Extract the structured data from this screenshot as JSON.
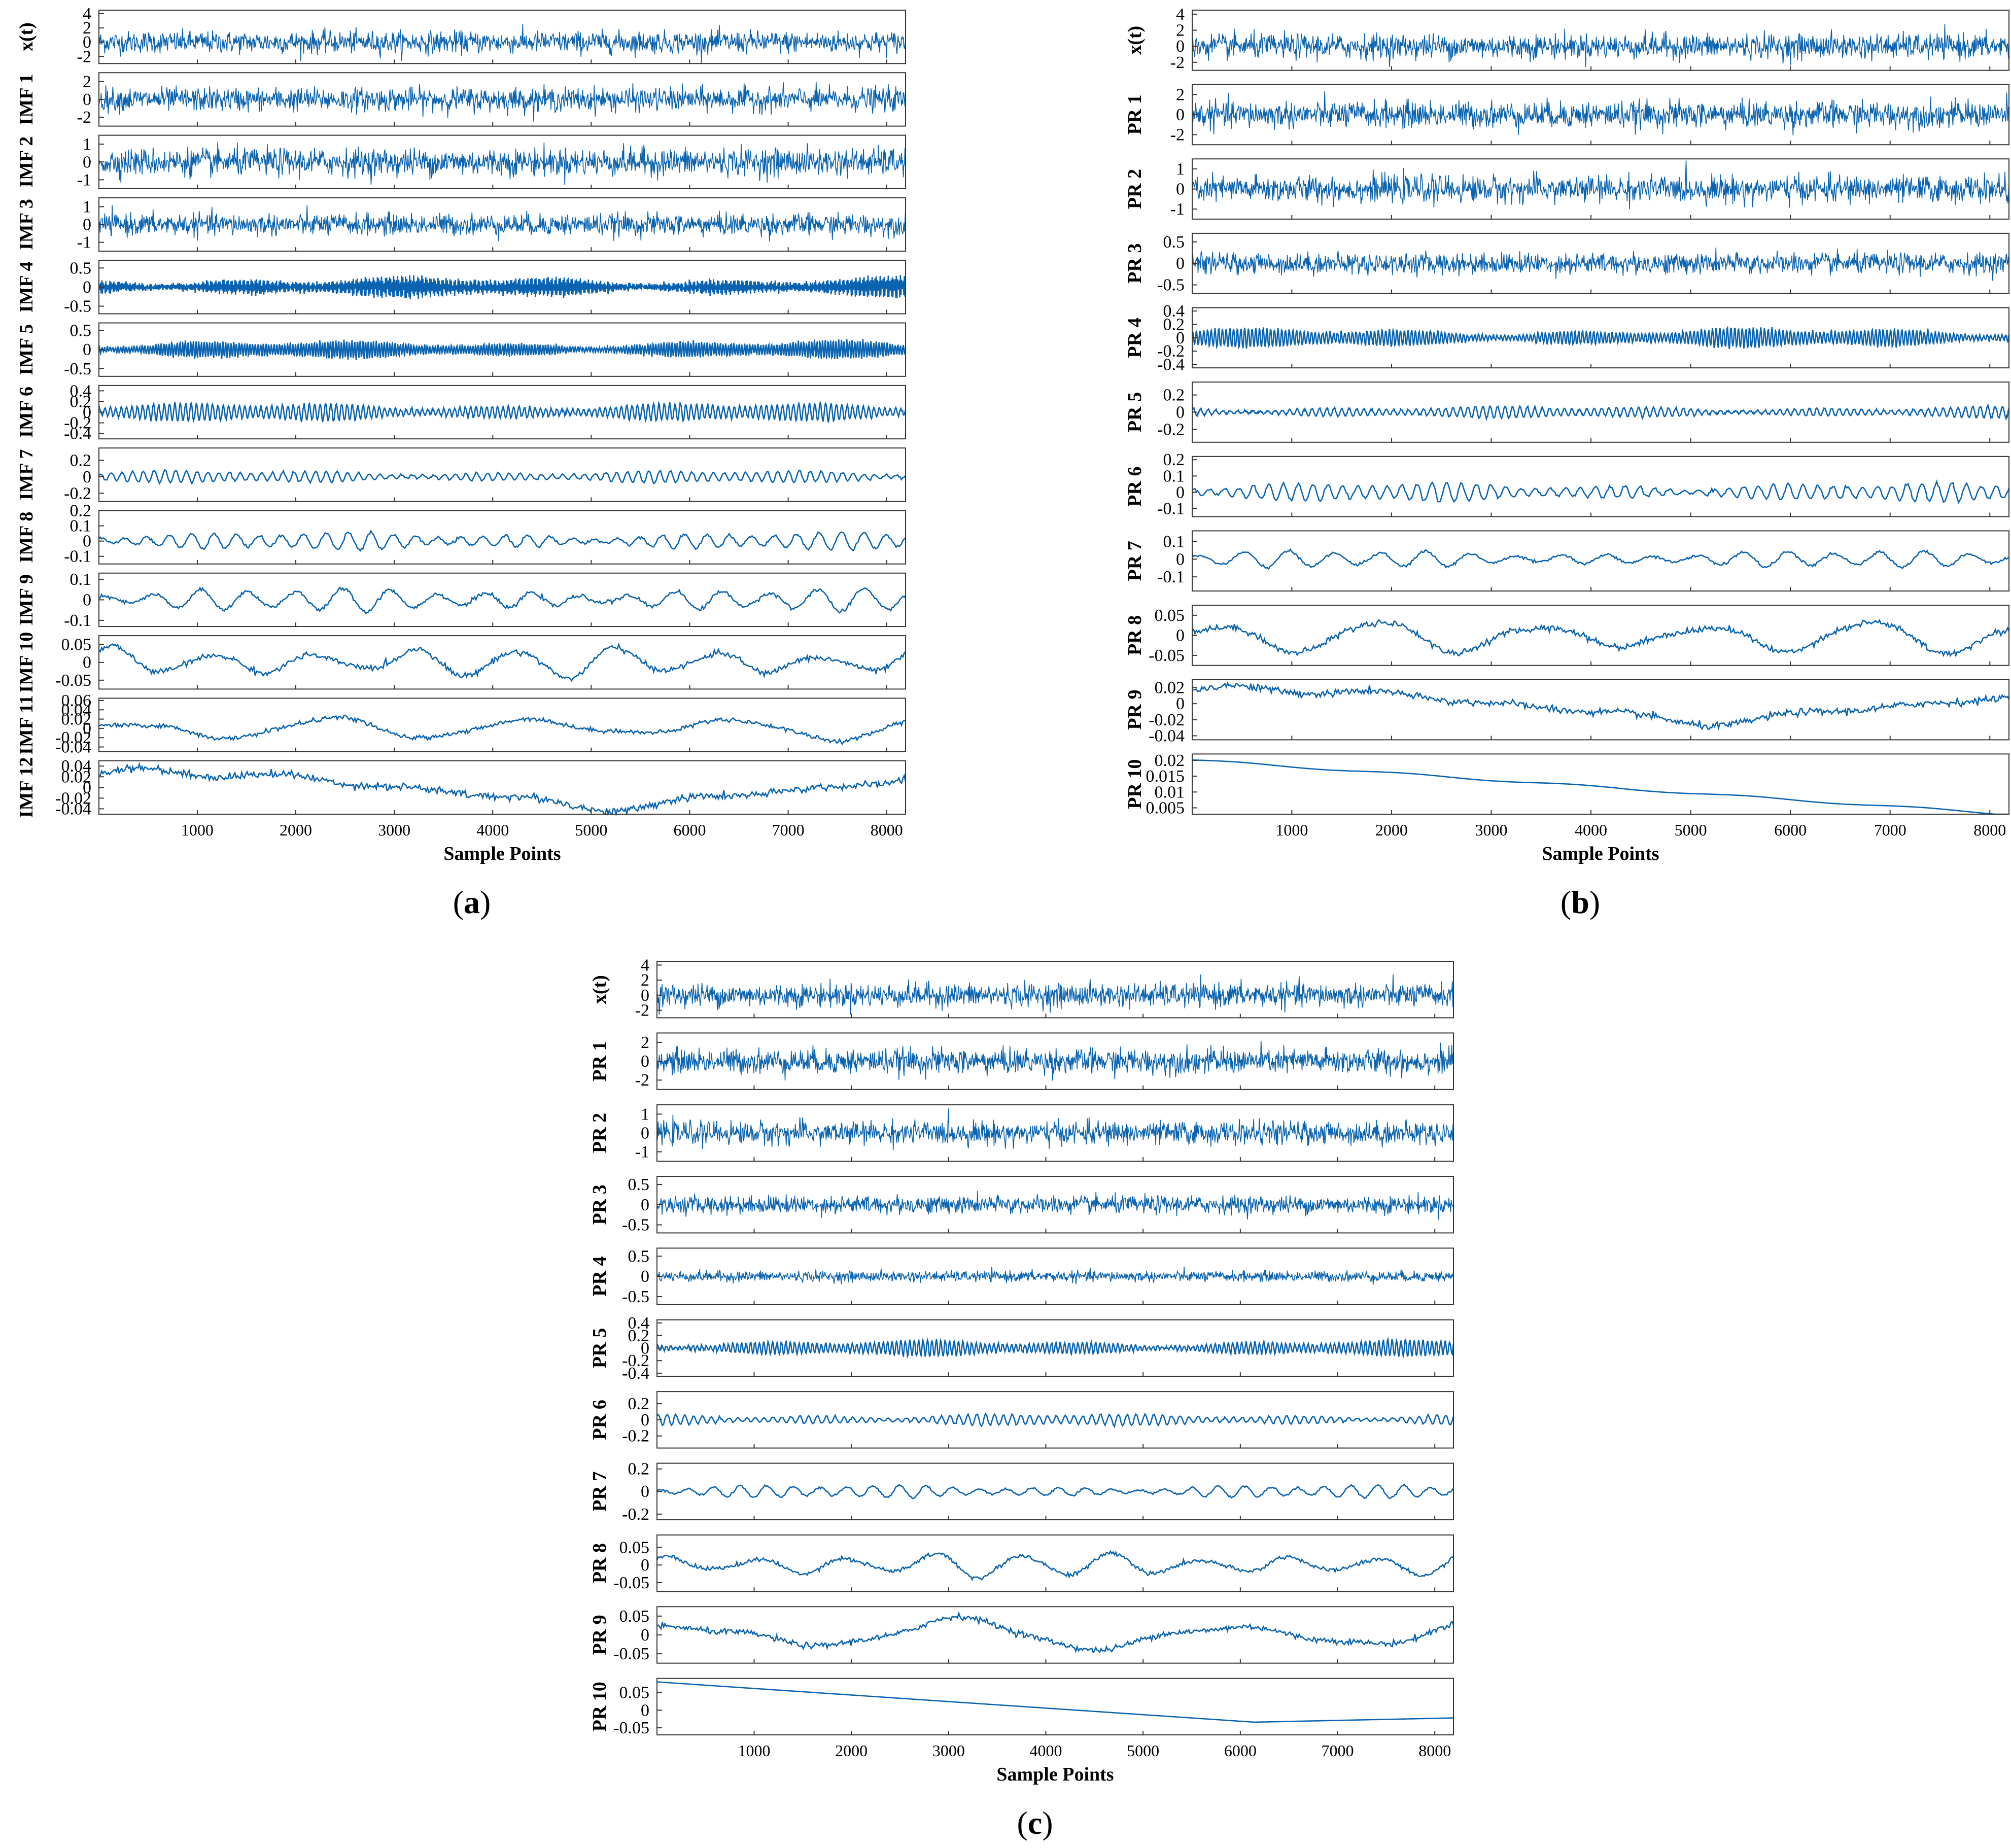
{
  "line_color": "#0a63b0",
  "chart_data": [
    {
      "type": "line",
      "panel": "a",
      "panel_label": "(a)",
      "panel_letter": "a",
      "xlabel": "Sample Points",
      "xlim": [
        1,
        8192
      ],
      "xticks": [
        1000,
        2000,
        3000,
        4000,
        5000,
        6000,
        7000,
        8000
      ],
      "series": [
        {
          "name": "x(t)",
          "ylim": [
            -3,
            4.5
          ],
          "yticks": [
            "4",
            "2",
            "0",
            "-2"
          ],
          "ytick_values": [
            4,
            2,
            0,
            -2
          ],
          "kind": "noise",
          "amp": 1.4,
          "cycles": 0
        },
        {
          "name": "IMF 1",
          "ylim": [
            -3,
            3
          ],
          "yticks": [
            "2",
            "0",
            "-2"
          ],
          "ytick_values": [
            2,
            0,
            -2
          ],
          "kind": "noise",
          "amp": 1.2,
          "cycles": 0
        },
        {
          "name": "IMF 2",
          "ylim": [
            -1.5,
            1.5
          ],
          "yticks": [
            "1",
            "0",
            "-1"
          ],
          "ytick_values": [
            1,
            0,
            -1
          ],
          "kind": "noise",
          "amp": 0.7,
          "cycles": 0
        },
        {
          "name": "IMF 3",
          "ylim": [
            -1.5,
            1.5
          ],
          "yticks": [
            "1",
            "0",
            "-1"
          ],
          "ytick_values": [
            1,
            0,
            -1
          ],
          "kind": "noise",
          "amp": 0.55,
          "cycles": 0
        },
        {
          "name": "IMF 4",
          "ylim": [
            -0.7,
            0.7
          ],
          "yticks": [
            "0.5",
            "0",
            "-0.5"
          ],
          "ytick_values": [
            0.5,
            0,
            -0.5
          ],
          "kind": "osc",
          "amp": 0.3,
          "cycles": 600
        },
        {
          "name": "IMF 5",
          "ylim": [
            -0.7,
            0.7
          ],
          "yticks": [
            "0.5",
            "0",
            "-0.5"
          ],
          "ytick_values": [
            0.5,
            0,
            -0.5
          ],
          "kind": "osc",
          "amp": 0.25,
          "cycles": 300
        },
        {
          "name": "IMF 6",
          "ylim": [
            -0.5,
            0.5
          ],
          "yticks": [
            "0.4",
            "0.2",
            "0",
            "-0.2",
            "-0.4"
          ],
          "ytick_values": [
            0.4,
            0.2,
            0,
            -0.2,
            -0.4
          ],
          "kind": "osc",
          "amp": 0.18,
          "cycles": 150
        },
        {
          "name": "IMF 7",
          "ylim": [
            -0.3,
            0.35
          ],
          "yticks": [
            "0.2",
            "0",
            "-0.2"
          ],
          "ytick_values": [
            0.2,
            0,
            -0.2
          ],
          "kind": "osc",
          "amp": 0.08,
          "cycles": 75
        },
        {
          "name": "IMF 8",
          "ylim": [
            -0.15,
            0.2
          ],
          "yticks": [
            "0.2",
            "0.1",
            "0",
            "-0.1"
          ],
          "ytick_values": [
            0.2,
            0.1,
            0,
            -0.1
          ],
          "kind": "osc",
          "amp": 0.06,
          "cycles": 36
        },
        {
          "name": "IMF 9",
          "ylim": [
            -0.13,
            0.13
          ],
          "yticks": [
            "0.1",
            "0",
            "-0.1"
          ],
          "ytick_values": [
            0.1,
            0,
            -0.1
          ],
          "kind": "osc",
          "amp": 0.06,
          "cycles": 17
        },
        {
          "name": "IMF 10",
          "ylim": [
            -0.075,
            0.075
          ],
          "yticks": [
            "0.05",
            "0",
            "-0.05"
          ],
          "ytick_values": [
            0.05,
            0,
            -0.05
          ],
          "kind": "osc",
          "amp": 0.05,
          "cycles": 8
        },
        {
          "name": "IMF 11",
          "ylim": [
            -0.05,
            0.065
          ],
          "yticks": [
            "0.06",
            "0.04",
            "0.02",
            "0",
            "-0.02",
            "-0.04"
          ],
          "ytick_values": [
            0.06,
            0.04,
            0.02,
            0,
            -0.02,
            -0.04
          ],
          "kind": "osc",
          "amp": 0.03,
          "cycles": 4
        },
        {
          "name": "IMF 12",
          "ylim": [
            -0.05,
            0.05
          ],
          "yticks": [
            "0.04",
            "0.02",
            "0",
            "-0.02",
            "-0.04"
          ],
          "ytick_values": [
            0.04,
            0.02,
            0,
            -0.02,
            -0.04
          ],
          "kind": "osc",
          "amp": 0.045,
          "cycles": 1
        }
      ]
    },
    {
      "type": "line",
      "panel": "b",
      "panel_label": "(b)",
      "panel_letter": "b",
      "xlabel": "Sample Points",
      "xlim": [
        1,
        8192
      ],
      "xticks": [
        1000,
        2000,
        3000,
        4000,
        5000,
        6000,
        7000,
        8000
      ],
      "series": [
        {
          "name": "x(t)",
          "ylim": [
            -3,
            4.5
          ],
          "yticks": [
            "4",
            "2",
            "0",
            "-2"
          ],
          "ytick_values": [
            4,
            2,
            0,
            -2
          ],
          "kind": "noise",
          "amp": 1.4,
          "cycles": 0
        },
        {
          "name": "PR 1",
          "ylim": [
            -3,
            3
          ],
          "yticks": [
            "2",
            "0",
            "-2"
          ],
          "ytick_values": [
            2,
            0,
            -2
          ],
          "kind": "noise",
          "amp": 1.2,
          "cycles": 0
        },
        {
          "name": "PR 2",
          "ylim": [
            -1.5,
            1.5
          ],
          "yticks": [
            "1",
            "0",
            "-1"
          ],
          "ytick_values": [
            1,
            0,
            -1
          ],
          "kind": "noise",
          "amp": 0.6,
          "cycles": 0
        },
        {
          "name": "PR 3",
          "ylim": [
            -0.7,
            0.7
          ],
          "yticks": [
            "0.5",
            "0",
            "-0.5"
          ],
          "ytick_values": [
            0.5,
            0,
            -0.5
          ],
          "kind": "noise",
          "amp": 0.22,
          "cycles": 0
        },
        {
          "name": "PR 4",
          "ylim": [
            -0.45,
            0.45
          ],
          "yticks": [
            "0.4",
            "0.2",
            "0",
            "-0.2",
            "-0.4"
          ],
          "ytick_values": [
            0.4,
            0.2,
            0,
            -0.2,
            -0.4
          ],
          "kind": "osc",
          "amp": 0.15,
          "cycles": 220
        },
        {
          "name": "PR 5",
          "ylim": [
            -0.35,
            0.35
          ],
          "yticks": [
            "0.2",
            "0",
            "-0.2"
          ],
          "ytick_values": [
            0.2,
            0,
            -0.2
          ],
          "kind": "osc",
          "amp": 0.07,
          "cycles": 110
        },
        {
          "name": "PR 6",
          "ylim": [
            -0.15,
            0.22
          ],
          "yticks": [
            "0.2",
            "0.1",
            "0",
            "-0.1"
          ],
          "ytick_values": [
            0.2,
            0.1,
            0,
            -0.1
          ],
          "kind": "osc",
          "amp": 0.06,
          "cycles": 55
        },
        {
          "name": "PR 7",
          "ylim": [
            -0.18,
            0.16
          ],
          "yticks": [
            "0.1",
            "0",
            "-0.1"
          ],
          "ytick_values": [
            0.1,
            0,
            -0.1
          ],
          "kind": "osc",
          "amp": 0.05,
          "cycles": 18
        },
        {
          "name": "PR 8",
          "ylim": [
            -0.075,
            0.075
          ],
          "yticks": [
            "0.05",
            "0",
            "-0.05"
          ],
          "ytick_values": [
            0.05,
            0,
            -0.05
          ],
          "kind": "osc",
          "amp": 0.05,
          "cycles": 5
        },
        {
          "name": "PR 9",
          "ylim": [
            -0.045,
            0.03
          ],
          "yticks": [
            "0.02",
            "0",
            "-0.02",
            "-0.04"
          ],
          "ytick_values": [
            0.02,
            0,
            -0.02,
            -0.04
          ],
          "kind": "osc",
          "amp": 0.028,
          "cycles": 1
        },
        {
          "name": "PR 10",
          "ylim": [
            0.003,
            0.022
          ],
          "yticks": [
            "0.02",
            "0.015",
            "0.01",
            "0.005"
          ],
          "ytick_values": [
            0.02,
            0.015,
            0.01,
            0.005
          ],
          "kind": "trend",
          "amp": 0.021,
          "cycles": 0
        }
      ]
    },
    {
      "type": "line",
      "panel": "c",
      "panel_label": "(c)",
      "panel_letter": "c",
      "xlabel": "Sample Points",
      "xlim": [
        1,
        8192
      ],
      "xticks": [
        1000,
        2000,
        3000,
        4000,
        5000,
        6000,
        7000,
        8000
      ],
      "series": [
        {
          "name": "x(t)",
          "ylim": [
            -3,
            4.5
          ],
          "yticks": [
            "4",
            "2",
            "0",
            "-2"
          ],
          "ytick_values": [
            4,
            2,
            0,
            -2
          ],
          "kind": "noise",
          "amp": 1.4,
          "cycles": 0
        },
        {
          "name": "PR 1",
          "ylim": [
            -3,
            3
          ],
          "yticks": [
            "2",
            "0",
            "-2"
          ],
          "ytick_values": [
            2,
            0,
            -2
          ],
          "kind": "noise",
          "amp": 1.2,
          "cycles": 0
        },
        {
          "name": "PR 2",
          "ylim": [
            -1.5,
            1.5
          ],
          "yticks": [
            "1",
            "0",
            "-1"
          ],
          "ytick_values": [
            1,
            0,
            -1
          ],
          "kind": "noise",
          "amp": 0.55,
          "cycles": 0
        },
        {
          "name": "PR 3",
          "ylim": [
            -0.7,
            0.7
          ],
          "yticks": [
            "0.5",
            "0",
            "-0.5"
          ],
          "ytick_values": [
            0.5,
            0,
            -0.5
          ],
          "kind": "noise",
          "amp": 0.2,
          "cycles": 0
        },
        {
          "name": "PR 4",
          "ylim": [
            -0.7,
            0.7
          ],
          "yticks": [
            "0.5",
            "0",
            "-0.5"
          ],
          "ytick_values": [
            0.5,
            0,
            -0.5
          ],
          "kind": "noise",
          "amp": 0.12,
          "cycles": 0
        },
        {
          "name": "PR 5",
          "ylim": [
            -0.45,
            0.45
          ],
          "yticks": [
            "0.4",
            "0.2",
            "0",
            "-0.2",
            "-0.4"
          ],
          "ytick_values": [
            0.4,
            0.2,
            0,
            -0.2,
            -0.4
          ],
          "kind": "osc",
          "amp": 0.13,
          "cycles": 180
        },
        {
          "name": "PR 6",
          "ylim": [
            -0.35,
            0.35
          ],
          "yticks": [
            "0.2",
            "0",
            "-0.2"
          ],
          "ytick_values": [
            0.2,
            0,
            -0.2
          ],
          "kind": "osc",
          "amp": 0.08,
          "cycles": 90
        },
        {
          "name": "PR 7",
          "ylim": [
            -0.25,
            0.25
          ],
          "yticks": [
            "0.2",
            "0",
            "-0.2"
          ],
          "ytick_values": [
            0.2,
            0,
            -0.2
          ],
          "kind": "osc",
          "amp": 0.06,
          "cycles": 30
        },
        {
          "name": "PR 8",
          "ylim": [
            -0.075,
            0.085
          ],
          "yticks": [
            "0.05",
            "0",
            "-0.05"
          ],
          "ytick_values": [
            0.05,
            0,
            -0.05
          ],
          "kind": "osc",
          "amp": 0.04,
          "cycles": 9
        },
        {
          "name": "PR 9",
          "ylim": [
            -0.075,
            0.075
          ],
          "yticks": [
            "0.05",
            "0",
            "-0.05"
          ],
          "ytick_values": [
            0.05,
            0,
            -0.05
          ],
          "kind": "osc",
          "amp": 0.05,
          "cycles": 3
        },
        {
          "name": "PR 10",
          "ylim": [
            -0.07,
            0.09
          ],
          "yticks": [
            "0.05",
            "0",
            "-0.05"
          ],
          "ytick_values": [
            0.05,
            0,
            -0.05
          ],
          "kind": "trend2",
          "amp": 0.08,
          "cycles": 0
        }
      ]
    }
  ]
}
